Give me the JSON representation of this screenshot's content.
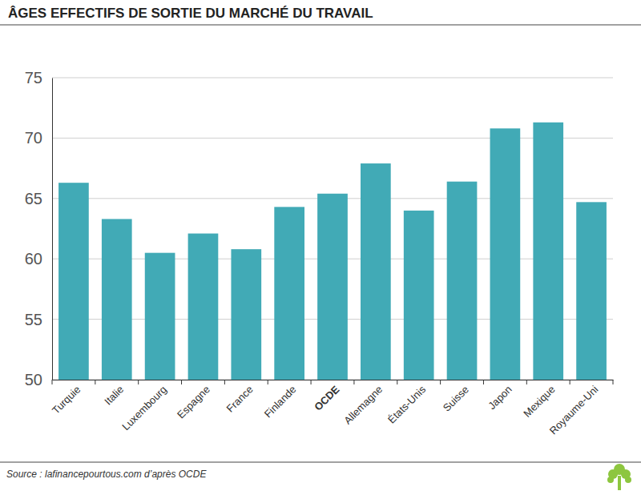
{
  "chart_data": {
    "type": "bar",
    "title": "ÂGES EFFECTIFS DE SORTIE DU MARCHÉ DU TRAVAIL",
    "source": "Source : lafinancepourtous.com d’après OCDE",
    "categories": [
      "Turquie",
      "Italie",
      "Luxembourg",
      "Espagne",
      "France",
      "Finlande",
      "OCDE",
      "Allemagne",
      "États-Unis",
      "Suisse",
      "Japon",
      "Mexique",
      "Royaume-Uni"
    ],
    "values": [
      66.3,
      63.3,
      60.5,
      62.1,
      60.8,
      64.3,
      65.4,
      67.9,
      64.0,
      66.4,
      70.8,
      71.3,
      64.7
    ],
    "color": "#41aab6",
    "ylim": [
      50,
      75
    ],
    "yticks": [
      50,
      55,
      60,
      65,
      70,
      75
    ],
    "grid": true
  }
}
